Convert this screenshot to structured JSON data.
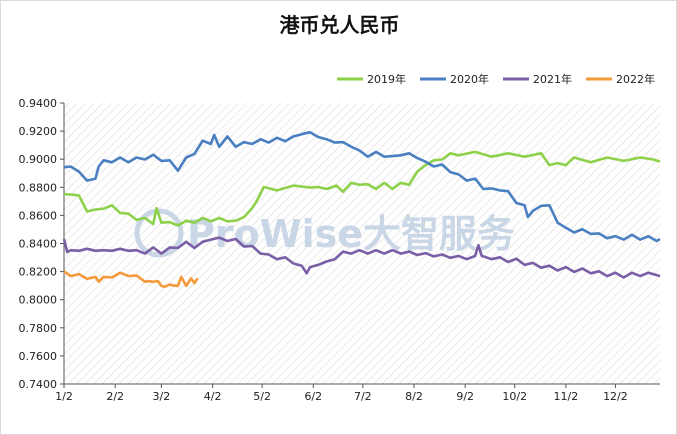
{
  "chart_data": {
    "type": "line",
    "title": "港币兑人民币",
    "xlabel": "",
    "ylabel": "",
    "x_ticks": [
      "1/2",
      "2/2",
      "3/2",
      "4/2",
      "5/2",
      "6/2",
      "7/2",
      "8/2",
      "9/2",
      "10/2",
      "11/2",
      "12/2"
    ],
    "y_ticks": [
      "0.7400",
      "0.7600",
      "0.7800",
      "0.8000",
      "0.8200",
      "0.8400",
      "0.8600",
      "0.8800",
      "0.9000",
      "0.9200",
      "0.9400"
    ],
    "ylim": [
      0.74,
      0.94
    ],
    "legend_position": "top-right",
    "grid": "hatched background",
    "watermark": "ProWise大智服务",
    "series": [
      {
        "name": "2019年",
        "color": "#8dd14b",
        "points": [
          [
            1,
            0.874
          ],
          [
            5,
            0.876
          ],
          [
            10,
            0.873
          ],
          [
            15,
            0.864
          ],
          [
            20,
            0.863
          ],
          [
            25,
            0.866
          ],
          [
            30,
            0.866
          ],
          [
            35,
            0.863
          ],
          [
            40,
            0.86
          ],
          [
            45,
            0.858
          ],
          [
            50,
            0.857
          ],
          [
            55,
            0.855
          ],
          [
            57,
            0.864
          ],
          [
            60,
            0.856
          ],
          [
            65,
            0.854
          ],
          [
            70,
            0.854
          ],
          [
            75,
            0.855
          ],
          [
            80,
            0.856
          ],
          [
            85,
            0.857
          ],
          [
            90,
            0.857
          ],
          [
            95,
            0.857
          ],
          [
            100,
            0.857
          ],
          [
            105,
            0.855
          ],
          [
            110,
            0.86
          ],
          [
            115,
            0.864
          ],
          [
            118,
            0.872
          ],
          [
            122,
            0.879
          ],
          [
            130,
            0.879
          ],
          [
            140,
            0.88
          ],
          [
            150,
            0.881
          ],
          [
            155,
            0.879
          ],
          [
            160,
            0.88
          ],
          [
            166,
            0.88
          ],
          [
            170,
            0.878
          ],
          [
            175,
            0.882
          ],
          [
            180,
            0.883
          ],
          [
            185,
            0.881
          ],
          [
            190,
            0.88
          ],
          [
            195,
            0.882
          ],
          [
            200,
            0.88
          ],
          [
            205,
            0.882
          ],
          [
            210,
            0.883
          ],
          [
            215,
            0.89
          ],
          [
            220,
            0.897
          ],
          [
            225,
            0.898
          ],
          [
            230,
            0.901
          ],
          [
            235,
            0.903
          ],
          [
            240,
            0.904
          ],
          [
            250,
            0.904
          ],
          [
            260,
            0.903
          ],
          [
            270,
            0.903
          ],
          [
            280,
            0.903
          ],
          [
            290,
            0.903
          ],
          [
            295,
            0.897
          ],
          [
            300,
            0.896
          ],
          [
            305,
            0.897
          ],
          [
            310,
            0.9
          ],
          [
            320,
            0.899
          ],
          [
            330,
            0.9
          ],
          [
            340,
            0.9
          ],
          [
            350,
            0.9
          ],
          [
            358,
            0.901
          ],
          [
            362,
            0.897
          ]
        ]
      },
      {
        "name": "2020年",
        "color": "#4a7fc1",
        "points": [
          [
            1,
            0.893
          ],
          [
            5,
            0.896
          ],
          [
            10,
            0.89
          ],
          [
            15,
            0.886
          ],
          [
            20,
            0.885
          ],
          [
            22,
            0.896
          ],
          [
            25,
            0.898
          ],
          [
            30,
            0.899
          ],
          [
            35,
            0.9
          ],
          [
            40,
            0.899
          ],
          [
            45,
            0.9
          ],
          [
            50,
            0.901
          ],
          [
            55,
            0.902
          ],
          [
            60,
            0.9
          ],
          [
            65,
            0.898
          ],
          [
            70,
            0.893
          ],
          [
            75,
            0.9
          ],
          [
            80,
            0.905
          ],
          [
            85,
            0.912
          ],
          [
            90,
            0.912
          ],
          [
            92,
            0.916
          ],
          [
            95,
            0.91
          ],
          [
            100,
            0.915
          ],
          [
            105,
            0.91
          ],
          [
            110,
            0.911
          ],
          [
            115,
            0.912
          ],
          [
            120,
            0.913
          ],
          [
            125,
            0.913
          ],
          [
            130,
            0.914
          ],
          [
            135,
            0.914
          ],
          [
            140,
            0.915
          ],
          [
            145,
            0.919
          ],
          [
            150,
            0.918
          ],
          [
            155,
            0.917
          ],
          [
            160,
            0.913
          ],
          [
            165,
            0.913
          ],
          [
            170,
            0.911
          ],
          [
            175,
            0.91
          ],
          [
            180,
            0.905
          ],
          [
            185,
            0.903
          ],
          [
            190,
            0.904
          ],
          [
            195,
            0.903
          ],
          [
            200,
            0.901
          ],
          [
            205,
            0.904
          ],
          [
            210,
            0.903
          ],
          [
            215,
            0.902
          ],
          [
            220,
            0.897
          ],
          [
            225,
            0.896
          ],
          [
            230,
            0.895
          ],
          [
            235,
            0.892
          ],
          [
            240,
            0.888
          ],
          [
            245,
            0.886
          ],
          [
            250,
            0.885
          ],
          [
            255,
            0.88
          ],
          [
            260,
            0.878
          ],
          [
            265,
            0.879
          ],
          [
            270,
            0.876
          ],
          [
            275,
            0.87
          ],
          [
            280,
            0.866
          ],
          [
            282,
            0.86
          ],
          [
            285,
            0.862
          ],
          [
            290,
            0.868
          ],
          [
            295,
            0.866
          ],
          [
            300,
            0.856
          ],
          [
            305,
            0.85
          ],
          [
            310,
            0.849
          ],
          [
            315,
            0.849
          ],
          [
            320,
            0.848
          ],
          [
            325,
            0.846
          ],
          [
            330,
            0.845
          ],
          [
            335,
            0.844
          ],
          [
            340,
            0.844
          ],
          [
            345,
            0.845
          ],
          [
            350,
            0.844
          ],
          [
            355,
            0.844
          ],
          [
            360,
            0.843
          ],
          [
            362,
            0.842
          ]
        ]
      },
      {
        "name": "2021年",
        "color": "#7a5ea6",
        "points": [
          [
            1,
            0.842
          ],
          [
            3,
            0.835
          ],
          [
            5,
            0.834
          ],
          [
            10,
            0.836
          ],
          [
            15,
            0.835
          ],
          [
            20,
            0.836
          ],
          [
            25,
            0.834
          ],
          [
            30,
            0.836
          ],
          [
            35,
            0.835
          ],
          [
            40,
            0.836
          ],
          [
            45,
            0.834
          ],
          [
            50,
            0.834
          ],
          [
            55,
            0.836
          ],
          [
            60,
            0.834
          ],
          [
            65,
            0.836
          ],
          [
            70,
            0.838
          ],
          [
            75,
            0.84
          ],
          [
            80,
            0.838
          ],
          [
            85,
            0.84
          ],
          [
            90,
            0.844
          ],
          [
            95,
            0.843
          ],
          [
            100,
            0.843
          ],
          [
            105,
            0.842
          ],
          [
            110,
            0.839
          ],
          [
            115,
            0.837
          ],
          [
            120,
            0.834
          ],
          [
            125,
            0.831
          ],
          [
            130,
            0.83
          ],
          [
            135,
            0.829
          ],
          [
            140,
            0.827
          ],
          [
            145,
            0.823
          ],
          [
            148,
            0.82
          ],
          [
            150,
            0.822
          ],
          [
            155,
            0.826
          ],
          [
            160,
            0.826
          ],
          [
            165,
            0.83
          ],
          [
            170,
            0.833
          ],
          [
            175,
            0.834
          ],
          [
            180,
            0.834
          ],
          [
            185,
            0.834
          ],
          [
            190,
            0.834
          ],
          [
            195,
            0.834
          ],
          [
            200,
            0.834
          ],
          [
            205,
            0.834
          ],
          [
            210,
            0.833
          ],
          [
            215,
            0.833
          ],
          [
            220,
            0.832
          ],
          [
            225,
            0.832
          ],
          [
            230,
            0.831
          ],
          [
            235,
            0.831
          ],
          [
            240,
            0.83
          ],
          [
            245,
            0.83
          ],
          [
            250,
            0.83
          ],
          [
            252,
            0.84
          ],
          [
            254,
            0.83
          ],
          [
            260,
            0.83
          ],
          [
            265,
            0.829
          ],
          [
            270,
            0.828
          ],
          [
            275,
            0.828
          ],
          [
            280,
            0.826
          ],
          [
            285,
            0.825
          ],
          [
            290,
            0.824
          ],
          [
            295,
            0.823
          ],
          [
            300,
            0.822
          ],
          [
            305,
            0.822
          ],
          [
            310,
            0.821
          ],
          [
            315,
            0.821
          ],
          [
            320,
            0.82
          ],
          [
            325,
            0.819
          ],
          [
            330,
            0.818
          ],
          [
            335,
            0.818
          ],
          [
            340,
            0.817
          ],
          [
            345,
            0.818
          ],
          [
            350,
            0.818
          ],
          [
            355,
            0.818
          ],
          [
            362,
            0.818
          ]
        ]
      },
      {
        "name": "2022年",
        "color": "#f59a3b",
        "points": [
          [
            1,
            0.819
          ],
          [
            5,
            0.818
          ],
          [
            10,
            0.817
          ],
          [
            15,
            0.816
          ],
          [
            20,
            0.815
          ],
          [
            22,
            0.814
          ],
          [
            25,
            0.815
          ],
          [
            30,
            0.817
          ],
          [
            35,
            0.818
          ],
          [
            40,
            0.818
          ],
          [
            45,
            0.816
          ],
          [
            50,
            0.814
          ],
          [
            52,
            0.812
          ],
          [
            55,
            0.814
          ],
          [
            58,
            0.812
          ],
          [
            60,
            0.811
          ],
          [
            62,
            0.808
          ],
          [
            65,
            0.812
          ],
          [
            67,
            0.809
          ],
          [
            70,
            0.811
          ],
          [
            72,
            0.815
          ],
          [
            75,
            0.811
          ],
          [
            78,
            0.814
          ],
          [
            80,
            0.813
          ],
          [
            82,
            0.814
          ]
        ]
      }
    ]
  }
}
